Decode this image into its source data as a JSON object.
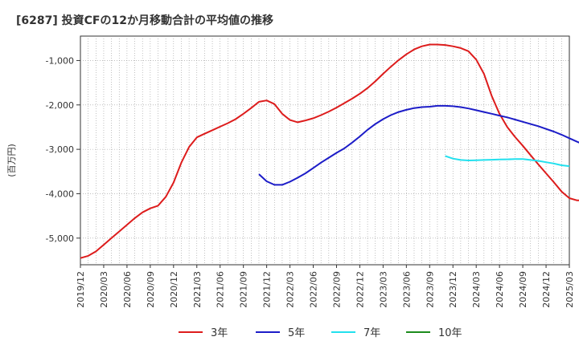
{
  "chart_data": {
    "type": "line",
    "title": "[6287]  投資CFの12か月移動合計の平均値の推移",
    "ylabel": "(百万円)",
    "xlabel": "",
    "ylim": [
      -5600,
      -450
    ],
    "yticks": [
      -5000,
      -4000,
      -3000,
      -2000,
      -1000
    ],
    "ytick_labels": [
      "-5,000",
      "-4,000",
      "-3,000",
      "-2,000",
      "-1,000"
    ],
    "x_start": "2019-12",
    "x_end": "2025-03",
    "xtick_labels": [
      "2019/12",
      "2020/03",
      "2020/06",
      "2020/09",
      "2020/12",
      "2021/03",
      "2021/06",
      "2021/09",
      "2021/12",
      "2022/03",
      "2022/06",
      "2022/09",
      "2022/12",
      "2023/03",
      "2023/06",
      "2023/09",
      "2023/12",
      "2024/03",
      "2024/06",
      "2024/09",
      "2024/12",
      "2025/03"
    ],
    "grid": true,
    "legend_position": "bottom",
    "series": [
      {
        "name": "3年",
        "color": "#dd1c1c",
        "start": "2019-12",
        "values": [
          -5450,
          -5400,
          -5300,
          -5150,
          -5000,
          -4850,
          -4700,
          -4550,
          -4420,
          -4330,
          -4270,
          -4070,
          -3750,
          -3300,
          -2950,
          -2730,
          -2650,
          -2570,
          -2490,
          -2410,
          -2320,
          -2200,
          -2070,
          -1930,
          -1900,
          -1980,
          -2200,
          -2340,
          -2390,
          -2350,
          -2300,
          -2230,
          -2150,
          -2060,
          -1960,
          -1860,
          -1750,
          -1620,
          -1470,
          -1300,
          -1140,
          -990,
          -860,
          -750,
          -680,
          -640,
          -640,
          -650,
          -680,
          -720,
          -790,
          -980,
          -1300,
          -1800,
          -2200,
          -2500,
          -2720,
          -2920,
          -3130,
          -3340,
          -3540,
          -3740,
          -3950,
          -4100,
          -4150,
          -4150,
          -4070
        ]
      },
      {
        "name": "5年",
        "color": "#1c1cc8",
        "start": "2021-11",
        "values": [
          -3560,
          -3720,
          -3800,
          -3800,
          -3730,
          -3640,
          -3540,
          -3420,
          -3300,
          -3190,
          -3080,
          -2980,
          -2850,
          -2710,
          -2560,
          -2430,
          -2320,
          -2230,
          -2160,
          -2110,
          -2070,
          -2050,
          -2040,
          -2020,
          -2020,
          -2030,
          -2050,
          -2080,
          -2120,
          -2160,
          -2200,
          -2240,
          -2280,
          -2330,
          -2380,
          -2430,
          -2480,
          -2540,
          -2600,
          -2670,
          -2750,
          -2830,
          -2900
        ]
      },
      {
        "name": "7年",
        "color": "#22e0ee",
        "start": "2023-11",
        "values": [
          -3150,
          -3210,
          -3240,
          -3250,
          -3245,
          -3240,
          -3235,
          -3230,
          -3225,
          -3220,
          -3220,
          -3240,
          -3260,
          -3290,
          -3320,
          -3360,
          -3380
        ]
      },
      {
        "name": "10年",
        "color": "#1c8c1c",
        "start": "2025-03",
        "values": []
      }
    ]
  }
}
